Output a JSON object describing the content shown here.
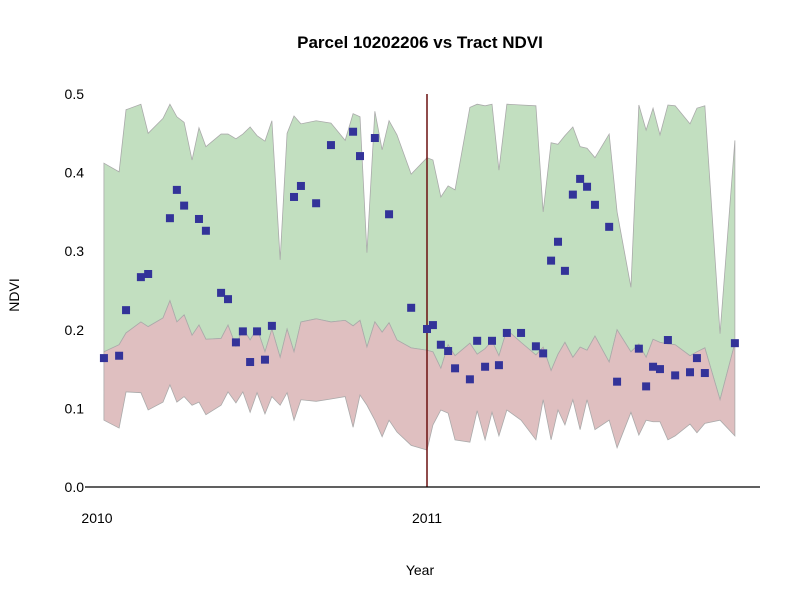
{
  "chart_data": {
    "type": "scatter",
    "title": "Parcel 10202206 vs Tract NDVI",
    "xlabel": "Year",
    "ylabel": "NDVI",
    "xlim": [
      2010,
      2012
    ],
    "ylim": [
      0,
      0.5
    ],
    "x_ticks": [
      {
        "value": 2010,
        "label": "2010"
      },
      {
        "value": 2011,
        "label": "2011"
      }
    ],
    "y_ticks": [
      {
        "value": 0,
        "label": "0.0"
      },
      {
        "value": 0.1,
        "label": "0.1"
      },
      {
        "value": 0.2,
        "label": "0.2"
      },
      {
        "value": 0.3,
        "label": "0.3"
      },
      {
        "value": 0.4,
        "label": "0.4"
      },
      {
        "value": 0.5,
        "label": "0.5"
      }
    ],
    "grid": false,
    "vline": {
      "x": 2011,
      "color": "#6b1010"
    },
    "colors": {
      "upper_band": "#c2dfc0",
      "lower_band": "#dfbfc0",
      "band_edge": "#aaaaaa",
      "points": "#333399"
    },
    "bands": {
      "x": [
        2010.021,
        2010.067,
        2010.088,
        2010.133,
        2010.155,
        2010.2,
        2010.221,
        2010.242,
        2010.264,
        2010.288,
        2010.309,
        2010.33,
        2010.376,
        2010.397,
        2010.421,
        2010.442,
        2010.464,
        2010.485,
        2010.509,
        2010.53,
        2010.555,
        2010.576,
        2010.597,
        2010.618,
        2010.664,
        2010.709,
        2010.752,
        2010.776,
        2010.797,
        2010.818,
        2010.842,
        2010.864,
        2010.885,
        2010.909,
        2010.952,
        2011.0,
        2011.018,
        2011.042,
        2011.064,
        2011.085,
        2011.13,
        2011.152,
        2011.176,
        2011.197,
        2011.218,
        2011.242,
        2011.285,
        2011.33,
        2011.352,
        2011.376,
        2011.397,
        2011.418,
        2011.442,
        2011.464,
        2011.485,
        2011.509,
        2011.552,
        2011.576,
        2011.618,
        2011.642,
        2011.664,
        2011.685,
        2011.706,
        2011.73,
        2011.752,
        2011.797,
        2011.818,
        2011.842,
        2011.888,
        2011.933
      ],
      "upper": [
        0.412,
        0.401,
        0.48,
        0.487,
        0.45,
        0.469,
        0.487,
        0.471,
        0.464,
        0.416,
        0.457,
        0.433,
        0.449,
        0.449,
        0.443,
        0.449,
        0.458,
        0.447,
        0.44,
        0.466,
        0.289,
        0.45,
        0.472,
        0.462,
        0.466,
        0.463,
        0.441,
        0.475,
        0.471,
        0.298,
        0.478,
        0.429,
        0.466,
        0.448,
        0.398,
        0.419,
        0.416,
        0.369,
        0.383,
        0.378,
        0.483,
        0.487,
        0.485,
        0.487,
        0.403,
        0.487,
        0.486,
        0.485,
        0.35,
        0.438,
        0.436,
        0.447,
        0.458,
        0.433,
        0.431,
        0.419,
        0.449,
        0.35,
        0.254,
        0.486,
        0.454,
        0.482,
        0.448,
        0.486,
        0.485,
        0.462,
        0.482,
        0.485,
        0.195,
        0.441
      ],
      "middle": [
        0.172,
        0.181,
        0.196,
        0.21,
        0.204,
        0.215,
        0.237,
        0.21,
        0.219,
        0.193,
        0.206,
        0.188,
        0.189,
        0.206,
        0.179,
        0.202,
        0.187,
        0.202,
        0.172,
        0.201,
        0.165,
        0.201,
        0.172,
        0.21,
        0.214,
        0.21,
        0.212,
        0.205,
        0.212,
        0.178,
        0.21,
        0.197,
        0.209,
        0.187,
        0.177,
        0.174,
        0.172,
        0.151,
        0.181,
        0.167,
        0.183,
        0.169,
        0.176,
        0.186,
        0.167,
        0.2,
        0.184,
        0.168,
        0.178,
        0.148,
        0.169,
        0.184,
        0.165,
        0.178,
        0.174,
        0.192,
        0.159,
        0.2,
        0.172,
        0.182,
        0.165,
        0.188,
        0.184,
        0.182,
        0.181,
        0.167,
        0.172,
        0.177,
        0.111,
        0.183
      ],
      "lower": [
        0.085,
        0.075,
        0.121,
        0.12,
        0.098,
        0.108,
        0.13,
        0.108,
        0.115,
        0.104,
        0.108,
        0.092,
        0.104,
        0.121,
        0.107,
        0.121,
        0.095,
        0.12,
        0.093,
        0.115,
        0.104,
        0.12,
        0.085,
        0.111,
        0.109,
        0.112,
        0.115,
        0.076,
        0.117,
        0.104,
        0.085,
        0.064,
        0.085,
        0.07,
        0.053,
        0.047,
        0.079,
        0.098,
        0.094,
        0.06,
        0.057,
        0.097,
        0.06,
        0.095,
        0.065,
        0.098,
        0.085,
        0.06,
        0.111,
        0.06,
        0.098,
        0.079,
        0.111,
        0.073,
        0.111,
        0.073,
        0.085,
        0.05,
        0.095,
        0.066,
        0.085,
        0.083,
        0.083,
        0.06,
        0.065,
        0.08,
        0.069,
        0.081,
        0.085,
        0.065
      ]
    },
    "points": [
      [
        2010.021,
        0.164
      ],
      [
        2010.067,
        0.167
      ],
      [
        2010.088,
        0.225
      ],
      [
        2010.133,
        0.267
      ],
      [
        2010.155,
        0.271
      ],
      [
        2010.221,
        0.342
      ],
      [
        2010.242,
        0.378
      ],
      [
        2010.264,
        0.358
      ],
      [
        2010.309,
        0.341
      ],
      [
        2010.33,
        0.326
      ],
      [
        2010.376,
        0.247
      ],
      [
        2010.397,
        0.239
      ],
      [
        2010.421,
        0.184
      ],
      [
        2010.442,
        0.198
      ],
      [
        2010.464,
        0.159
      ],
      [
        2010.485,
        0.198
      ],
      [
        2010.509,
        0.162
      ],
      [
        2010.53,
        0.205
      ],
      [
        2010.597,
        0.369
      ],
      [
        2010.618,
        0.383
      ],
      [
        2010.664,
        0.361
      ],
      [
        2010.709,
        0.435
      ],
      [
        2010.776,
        0.452
      ],
      [
        2010.797,
        0.421
      ],
      [
        2010.842,
        0.444
      ],
      [
        2010.885,
        0.347
      ],
      [
        2010.952,
        0.228
      ],
      [
        2011.0,
        0.201
      ],
      [
        2011.018,
        0.206
      ],
      [
        2011.042,
        0.181
      ],
      [
        2011.064,
        0.173
      ],
      [
        2011.085,
        0.151
      ],
      [
        2011.13,
        0.137
      ],
      [
        2011.152,
        0.186
      ],
      [
        2011.176,
        0.153
      ],
      [
        2011.197,
        0.186
      ],
      [
        2011.218,
        0.155
      ],
      [
        2011.242,
        0.196
      ],
      [
        2011.285,
        0.196
      ],
      [
        2011.33,
        0.179
      ],
      [
        2011.352,
        0.17
      ],
      [
        2011.376,
        0.288
      ],
      [
        2011.397,
        0.312
      ],
      [
        2011.418,
        0.275
      ],
      [
        2011.442,
        0.372
      ],
      [
        2011.464,
        0.392
      ],
      [
        2011.485,
        0.382
      ],
      [
        2011.509,
        0.359
      ],
      [
        2011.552,
        0.331
      ],
      [
        2011.576,
        0.134
      ],
      [
        2011.642,
        0.176
      ],
      [
        2011.664,
        0.128
      ],
      [
        2011.685,
        0.153
      ],
      [
        2011.706,
        0.15
      ],
      [
        2011.73,
        0.187
      ],
      [
        2011.752,
        0.142
      ],
      [
        2011.797,
        0.146
      ],
      [
        2011.818,
        0.164
      ],
      [
        2011.842,
        0.145
      ],
      [
        2011.933,
        0.183
      ]
    ]
  }
}
